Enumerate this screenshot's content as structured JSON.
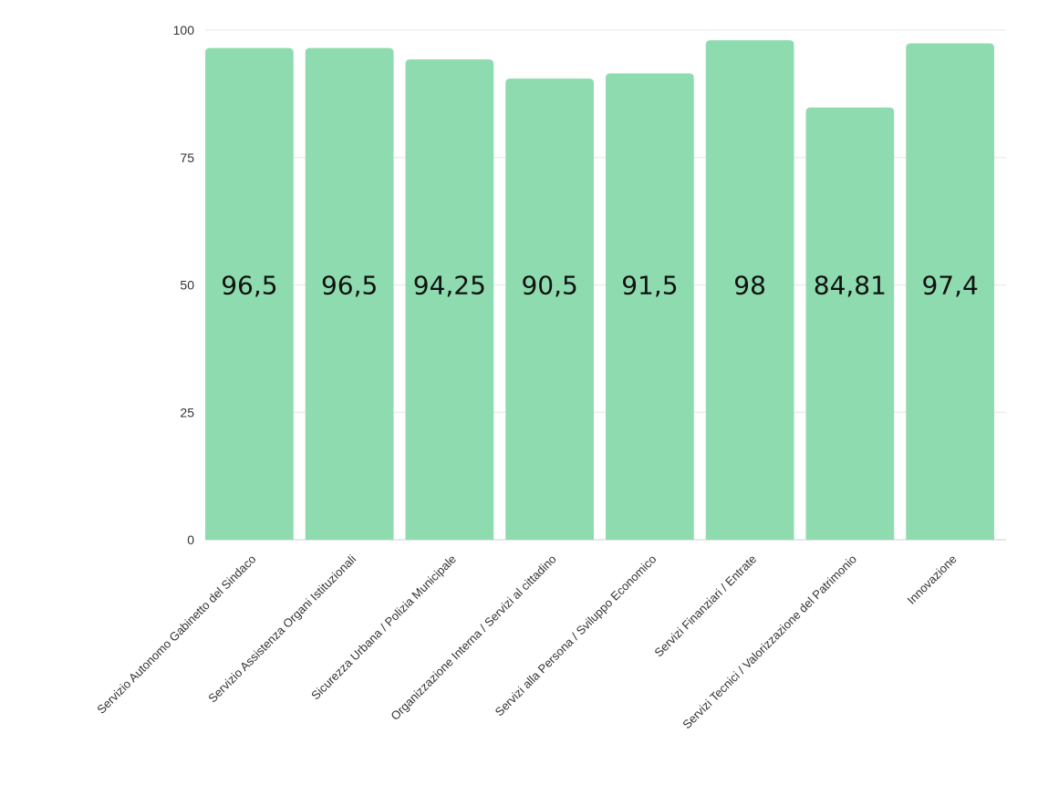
{
  "chart_data": {
    "type": "bar",
    "categories": [
      "Servizio Autonomo Gabinetto del Sindaco",
      "Servizio Assistenza Organi Istituzionali",
      "Sicurezza Urbana / Polizia Municipale",
      "Organizzazione Interna / Servizi al cittadino",
      "Servizi alla Persona / Sviluppo Economico",
      "Servizi Finanziari / Entrate",
      "Servizi Tecnici / Valorizzazione del Patrimonio",
      "Innovazione"
    ],
    "values": [
      96.5,
      96.5,
      94.25,
      90.5,
      91.5,
      98,
      84.81,
      97.4
    ],
    "data_labels": [
      "96,5",
      "96,5",
      "94,25",
      "90,5",
      "91,5",
      "98",
      "84,81",
      "97,4"
    ],
    "yticks": [
      0,
      25,
      50,
      75,
      100
    ],
    "ylim": [
      0,
      100
    ],
    "grid": true,
    "legend": "none",
    "bar_color": "#8fdbb0"
  }
}
